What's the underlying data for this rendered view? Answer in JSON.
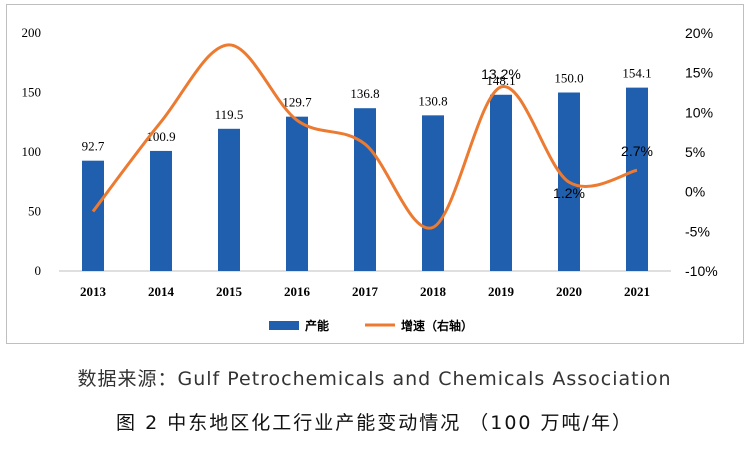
{
  "source": "数据来源：Gulf Petrochemicals and Chemicals Association",
  "figure_title": "图 2 中东地区化工行业产能变动情况 （100 万吨/年）",
  "colors": {
    "bar": "#1f5fae",
    "line": "#ec7a30",
    "axis": "#bfbfbf",
    "text": "#000000"
  },
  "chart_data": {
    "type": "bar",
    "categories": [
      "2013",
      "2014",
      "2015",
      "2016",
      "2017",
      "2018",
      "2019",
      "2020",
      "2021"
    ],
    "series": [
      {
        "name": "产能",
        "type": "bar",
        "axis": "left",
        "values": [
          92.7,
          100.9,
          119.5,
          129.7,
          136.8,
          130.8,
          148.1,
          150.0,
          154.1
        ],
        "labels": [
          "92.7",
          "100.9",
          "119.5",
          "129.7",
          "136.8",
          "130.8",
          "148.1",
          "150.0",
          "154.1"
        ]
      },
      {
        "name": "增速（右轴）",
        "type": "line",
        "axis": "right",
        "values": [
          -2.5,
          8.8,
          18.5,
          9.0,
          6.0,
          -4.5,
          13.2,
          1.2,
          2.7
        ],
        "labels": [
          "",
          "",
          "",
          "",
          "",
          "",
          "13.2%",
          "1.2%",
          "2.7%"
        ]
      }
    ],
    "y_left": {
      "ylim": [
        0,
        200
      ],
      "ticks": [
        "0",
        "50",
        "100",
        "150",
        "200"
      ]
    },
    "y_right": {
      "ylim": [
        -10,
        20
      ],
      "ticks": [
        "-10%",
        "-5%",
        "0%",
        "5%",
        "10%",
        "15%",
        "20%"
      ]
    },
    "legend": {
      "position": "bottom",
      "items": [
        "产能",
        "增速（右轴）"
      ]
    },
    "grid": false
  }
}
